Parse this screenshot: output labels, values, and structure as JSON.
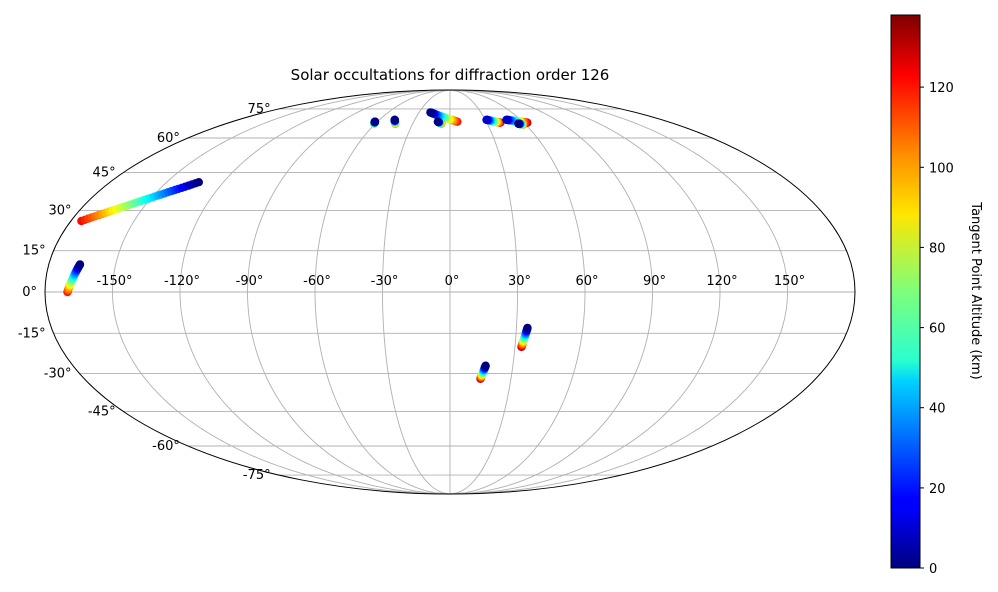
{
  "chart_data": {
    "type": "scatter",
    "projection": "Mollweide (all-sky)",
    "title": "Solar occultations for diffraction order 126",
    "grid": true,
    "longitude_ticks": [
      {
        "value": -150,
        "label": "-150°"
      },
      {
        "value": -120,
        "label": "-120°"
      },
      {
        "value": -90,
        "label": "-90°"
      },
      {
        "value": -60,
        "label": "-60°"
      },
      {
        "value": -30,
        "label": "-30°"
      },
      {
        "value": 0,
        "label": "0°"
      },
      {
        "value": 30,
        "label": "30°"
      },
      {
        "value": 60,
        "label": "60°"
      },
      {
        "value": 90,
        "label": "90°"
      },
      {
        "value": 120,
        "label": "120°"
      },
      {
        "value": 150,
        "label": "150°"
      }
    ],
    "latitude_ticks": [
      {
        "value": 75,
        "label": "75°"
      },
      {
        "value": 60,
        "label": "60°"
      },
      {
        "value": 45,
        "label": "45°"
      },
      {
        "value": 30,
        "label": "30°"
      },
      {
        "value": 15,
        "label": "15°"
      },
      {
        "value": 0,
        "label": "0°"
      },
      {
        "value": -15,
        "label": "-15°"
      },
      {
        "value": -30,
        "label": "-30°"
      },
      {
        "value": -45,
        "label": "-45°"
      },
      {
        "value": -60,
        "label": "-60°"
      },
      {
        "value": -75,
        "label": "-75°"
      }
    ],
    "colorbar": {
      "label": "Tangent Point Altitude (km)",
      "colormap": "jet",
      "range": [
        0,
        138
      ],
      "ticks": [
        {
          "value": 0,
          "label": "0"
        },
        {
          "value": 20,
          "label": "20"
        },
        {
          "value": 40,
          "label": "40"
        },
        {
          "value": 60,
          "label": "60"
        },
        {
          "value": 80,
          "label": "80"
        },
        {
          "value": 100,
          "label": "100"
        },
        {
          "value": 120,
          "label": "120"
        }
      ]
    },
    "tracks": [
      {
        "lon_start": -133,
        "lat_start": 41,
        "lon_end": -175,
        "lat_end": 26,
        "alt_start": 0,
        "alt_end": 120
      },
      {
        "lon_start": -166,
        "lat_start": 10,
        "lon_end": -170,
        "lat_end": 0,
        "alt_start": 0,
        "alt_end": 120
      },
      {
        "lon_start": -62,
        "lat_start": 68,
        "lon_end": -61,
        "lat_end": 67,
        "alt_start": 0,
        "alt_end": 100
      },
      {
        "lon_start": -47,
        "lat_start": 69,
        "lon_end": -44,
        "lat_end": 67,
        "alt_start": 0,
        "alt_end": 110
      },
      {
        "lon_start": -19,
        "lat_start": 73,
        "lon_end": 6,
        "lat_end": 68,
        "alt_start": 0,
        "alt_end": 120
      },
      {
        "lon_start": -10,
        "lat_start": 68,
        "lon_end": -7,
        "lat_end": 67,
        "alt_start": 0,
        "alt_end": 110
      },
      {
        "lon_start": 31,
        "lat_start": 69,
        "lon_end": 41,
        "lat_end": 67.5,
        "alt_start": 10,
        "alt_end": 125
      },
      {
        "lon_start": 48,
        "lat_start": 69,
        "lon_end": 63,
        "lat_end": 67.5,
        "alt_start": 10,
        "alt_end": 130
      },
      {
        "lon_start": 55,
        "lat_start": 67,
        "lon_end": 58,
        "lat_end": 66.5,
        "alt_start": 0,
        "alt_end": 110
      },
      {
        "lon_start": 35,
        "lat_start": -13,
        "lon_end": 33,
        "lat_end": -20,
        "alt_start": 0,
        "alt_end": 130
      },
      {
        "lon_start": 17,
        "lat_start": -27,
        "lon_end": 15,
        "lat_end": -32,
        "alt_start": 0,
        "alt_end": 130
      }
    ]
  }
}
